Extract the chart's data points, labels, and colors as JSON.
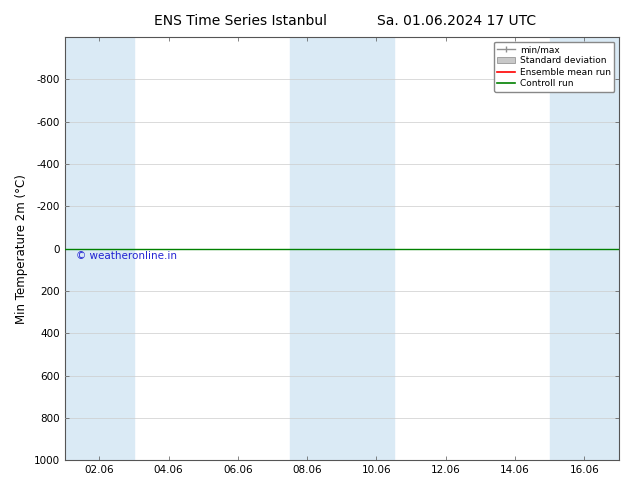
{
  "title_left": "ENS Time Series Istanbul",
  "title_right": "Sa. 01.06.2024 17 UTC",
  "ylabel": "Min Temperature 2m (°C)",
  "watermark": "© weatheronline.in",
  "ylim_top": -1000,
  "ylim_bottom": 1000,
  "yticks": [
    -800,
    -600,
    -400,
    -200,
    0,
    200,
    400,
    600,
    800,
    1000
  ],
  "x_labels": [
    "02.06",
    "04.06",
    "06.06",
    "08.06",
    "10.06",
    "12.06",
    "14.06",
    "16.06"
  ],
  "x_positions": [
    2,
    4,
    6,
    8,
    10,
    12,
    14,
    16
  ],
  "xlim": [
    1,
    17
  ],
  "shaded_ranges": [
    [
      1,
      3
    ],
    [
      7.5,
      10.5
    ],
    [
      15,
      17
    ]
  ],
  "shaded_color": "#daeaf5",
  "control_run_y": 0,
  "control_run_color": "#008000",
  "ensemble_mean_color": "#ff0000",
  "std_dev_color": "#c8c8c8",
  "minmax_color": "#909090",
  "bg_color": "#ffffff",
  "plot_bg_color": "#ffffff",
  "legend_labels": [
    "min/max",
    "Standard deviation",
    "Ensemble mean run",
    "Controll run"
  ],
  "legend_colors": [
    "#909090",
    "#c8c8c8",
    "#ff0000",
    "#008000"
  ],
  "title_fontsize": 10,
  "axis_fontsize": 7.5,
  "ylabel_fontsize": 8.5
}
